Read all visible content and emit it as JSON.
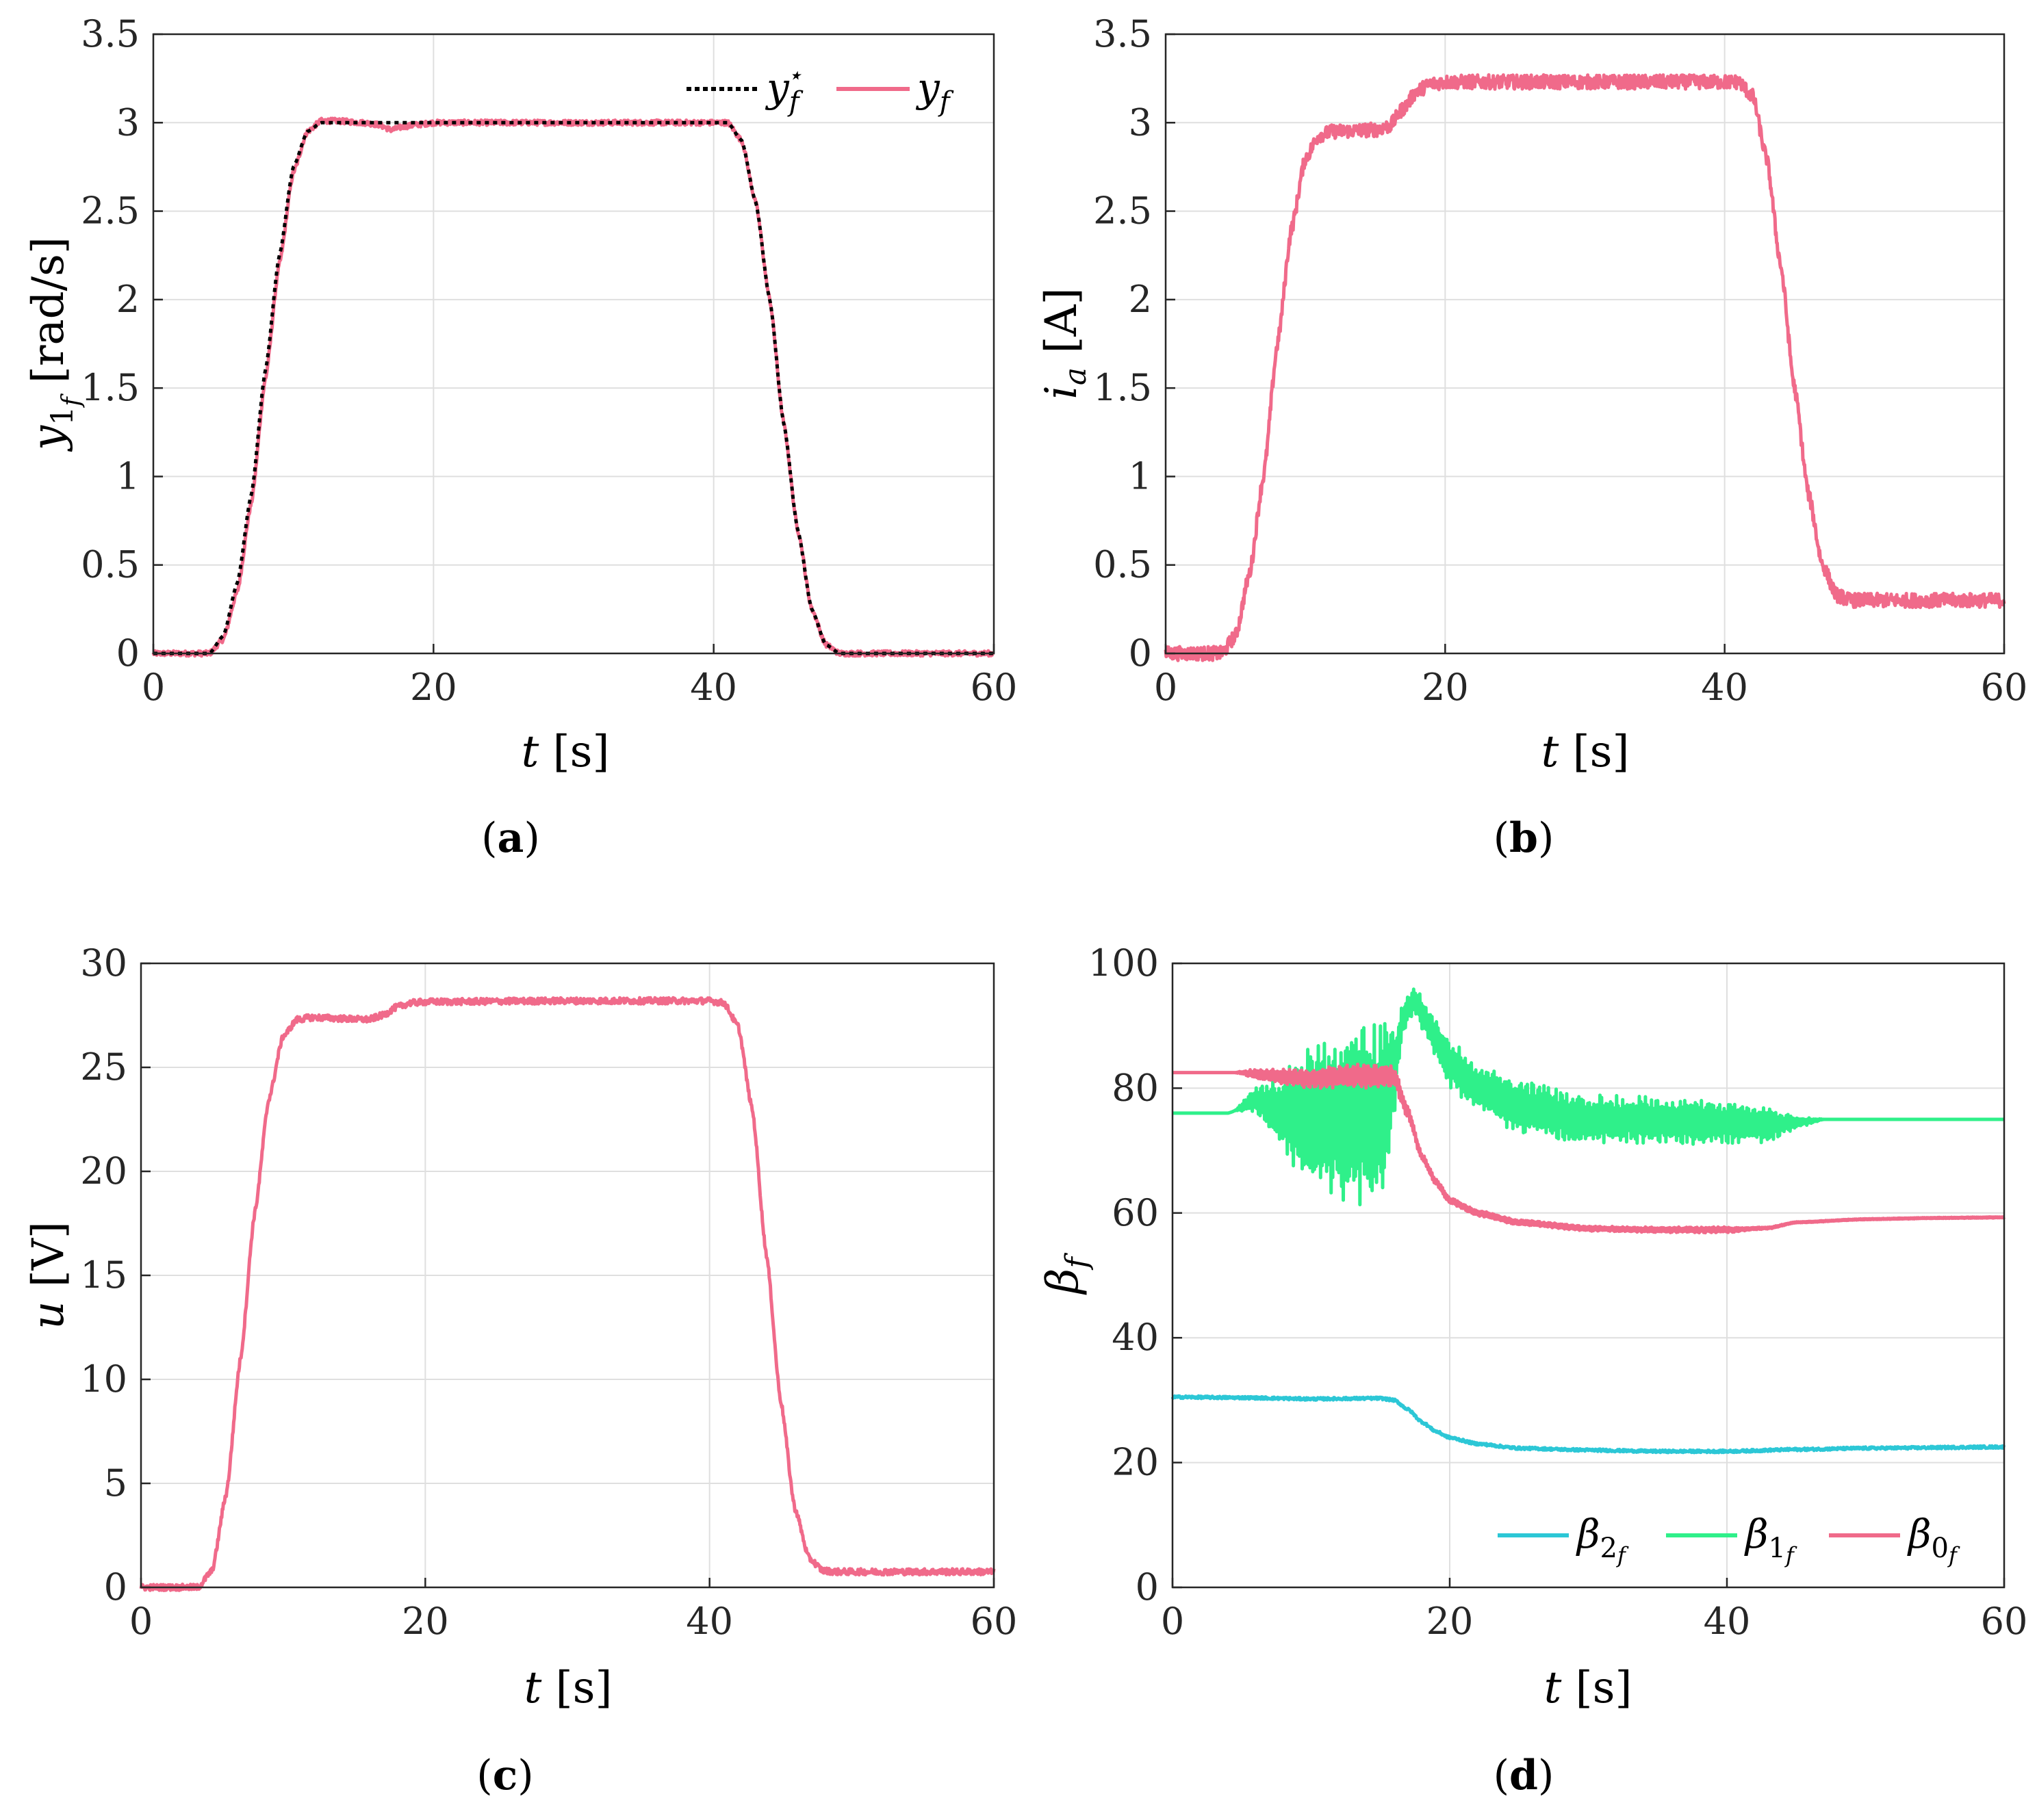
{
  "colors": {
    "ref": "#000000",
    "meas": "#f06a8a",
    "beta2": "#2cc7d6",
    "beta1": "#2ff08a",
    "beta0": "#f06a8a",
    "grid": "#dfdfdf",
    "axis": "#262626"
  },
  "chart_data": [
    {
      "id": "a",
      "type": "line",
      "panel_label": "(a)",
      "xlabel": "t [s]",
      "ylabel": "y1f [rad/s]",
      "xlim": [
        0,
        60
      ],
      "ylim": [
        0,
        3.5
      ],
      "xticks": [
        "0",
        "20",
        "40",
        "60"
      ],
      "yticks": [
        "0",
        "0.5",
        "1",
        "1.5",
        "2",
        "2.5",
        "3",
        "3.5"
      ],
      "legend": {
        "position": "top-right",
        "entries": [
          "y_f*",
          "y_f"
        ]
      },
      "series": [
        {
          "name": "y_f*",
          "style": "dotted",
          "color_key": "ref",
          "x": [
            0,
            4,
            5,
            6,
            7,
            8,
            9,
            10,
            11,
            12,
            13,
            16,
            20,
            30,
            40,
            41,
            42,
            43,
            44,
            45,
            46,
            47,
            48,
            49,
            50,
            60
          ],
          "y": [
            0,
            0,
            0.1,
            0.4,
            0.9,
            1.6,
            2.25,
            2.75,
            2.95,
            3.0,
            3.0,
            3.0,
            3.0,
            3.0,
            3.0,
            3.0,
            2.9,
            2.55,
            2.0,
            1.3,
            0.7,
            0.25,
            0.05,
            0,
            0,
            0
          ]
        },
        {
          "name": "y_f",
          "style": "solid",
          "color_key": "meas",
          "noise": 0.015,
          "x": [
            0,
            4,
            5,
            6,
            7,
            8,
            9,
            10,
            11,
            12,
            13,
            15,
            16,
            17,
            18,
            19,
            20,
            30,
            40,
            41,
            42,
            43,
            44,
            45,
            46,
            47,
            48,
            49,
            50,
            60
          ],
          "y": [
            0,
            0,
            0.08,
            0.35,
            0.85,
            1.55,
            2.2,
            2.72,
            2.95,
            3.01,
            3.01,
            3.0,
            2.99,
            2.96,
            2.98,
            2.99,
            3.0,
            3.0,
            3.0,
            3.0,
            2.9,
            2.55,
            2.0,
            1.3,
            0.7,
            0.25,
            0.05,
            0,
            0,
            0
          ]
        }
      ]
    },
    {
      "id": "b",
      "type": "line",
      "panel_label": "(b)",
      "xlabel": "t [s]",
      "ylabel": "ia [A]",
      "xlim": [
        0,
        60
      ],
      "ylim": [
        0,
        3.5
      ],
      "xticks": [
        "0",
        "20",
        "40",
        "60"
      ],
      "yticks": [
        "0",
        "0.5",
        "1",
        "1.5",
        "2",
        "2.5",
        "3",
        "3.5"
      ],
      "series": [
        {
          "name": "i_a",
          "style": "solid",
          "color_key": "meas",
          "noise": 0.04,
          "x": [
            0,
            4,
            5,
            6,
            7,
            8,
            9,
            10,
            11,
            12,
            15,
            16,
            17,
            18,
            19,
            20,
            30,
            40,
            41,
            42,
            43,
            44,
            45,
            46,
            47,
            48,
            49,
            50,
            60
          ],
          "y": [
            0,
            0,
            0.1,
            0.45,
            1.0,
            1.75,
            2.4,
            2.8,
            2.93,
            2.95,
            2.96,
            2.98,
            3.08,
            3.18,
            3.22,
            3.23,
            3.23,
            3.23,
            3.23,
            3.15,
            2.8,
            2.2,
            1.5,
            0.9,
            0.5,
            0.33,
            0.3,
            0.3,
            0.3
          ]
        }
      ]
    },
    {
      "id": "c",
      "type": "line",
      "panel_label": "(c)",
      "xlabel": "t [s]",
      "ylabel": "u [V]",
      "xlim": [
        0,
        60
      ],
      "ylim": [
        0,
        30
      ],
      "xticks": [
        "0",
        "20",
        "40",
        "60"
      ],
      "yticks": [
        "0",
        "5",
        "10",
        "15",
        "20",
        "25",
        "30"
      ],
      "series": [
        {
          "name": "u",
          "style": "solid",
          "color_key": "meas",
          "noise": 0.15,
          "x": [
            0,
            4,
            5,
            6,
            7,
            8,
            9,
            10,
            11,
            12,
            16,
            17,
            18,
            19,
            20,
            30,
            40,
            41,
            42,
            43,
            44,
            45,
            46,
            47,
            48,
            49,
            60
          ],
          "y": [
            0,
            0,
            0.8,
            4.5,
            11.0,
            18.0,
            23.5,
            26.5,
            27.3,
            27.4,
            27.3,
            27.5,
            27.9,
            28.1,
            28.15,
            28.2,
            28.2,
            28.1,
            27.0,
            23.0,
            16.0,
            9.0,
            3.8,
            1.4,
            0.8,
            0.75,
            0.75
          ]
        }
      ]
    },
    {
      "id": "d",
      "type": "line",
      "panel_label": "(d)",
      "xlabel": "t [s]",
      "ylabel": "βf",
      "xlim": [
        0,
        60
      ],
      "ylim": [
        0,
        100
      ],
      "xticks": [
        "0",
        "20",
        "40",
        "60"
      ],
      "yticks": [
        "0",
        "20",
        "40",
        "60",
        "80",
        "100"
      ],
      "legend": {
        "position": "bottom-right",
        "entries": [
          "β2f",
          "β1f",
          "β0f"
        ]
      },
      "series": [
        {
          "name": "β2f",
          "style": "solid",
          "color_key": "beta2",
          "noise": 0.2,
          "x": [
            0,
            5,
            10,
            15,
            16,
            17,
            18,
            19,
            20,
            22,
            25,
            30,
            35,
            40,
            45,
            50,
            60
          ],
          "y": [
            30.5,
            30.4,
            30.2,
            30.3,
            30.0,
            28.5,
            26.5,
            25.0,
            24.0,
            23.0,
            22.3,
            22.0,
            21.8,
            21.8,
            22.1,
            22.3,
            22.5
          ]
        },
        {
          "name": "β1f",
          "style": "solid",
          "color_key": "beta1",
          "noise": 0,
          "osc": [
            [
              0,
              0
            ],
            [
              4.5,
              0
            ],
            [
              6,
              2
            ],
            [
              8,
              6
            ],
            [
              9,
              10
            ],
            [
              10,
              13
            ],
            [
              12,
              14
            ],
            [
              14,
              15
            ],
            [
              15.5,
              15
            ],
            [
              16.2,
              4
            ],
            [
              17,
              2
            ],
            [
              20,
              4
            ],
            [
              25,
              4.5
            ],
            [
              40,
              3.5
            ],
            [
              43,
              3
            ],
            [
              45,
              1
            ],
            [
              47,
              0
            ],
            [
              60,
              0
            ]
          ],
          "x": [
            0,
            4,
            6,
            8,
            10,
            12,
            14,
            15,
            16,
            16.5,
            17,
            17.5,
            18,
            19,
            20,
            22,
            25,
            30,
            40,
            43,
            45,
            47,
            50,
            60
          ],
          "y": [
            76,
            76,
            78,
            76,
            75,
            75,
            76,
            76,
            82,
            90,
            93,
            94,
            92,
            88,
            84,
            80,
            77,
            75,
            74.5,
            74,
            74.5,
            75,
            75,
            75
          ]
        },
        {
          "name": "β0f",
          "style": "solid",
          "color_key": "beta0",
          "noise": 0,
          "osc": [
            [
              0,
              0
            ],
            [
              4.5,
              0
            ],
            [
              6,
              0.8
            ],
            [
              10,
              1.6
            ],
            [
              14,
              2.2
            ],
            [
              16,
              1.8
            ],
            [
              17,
              1.0
            ],
            [
              18,
              0.6
            ],
            [
              20,
              0.5
            ],
            [
              30,
              0.4
            ],
            [
              40,
              0.5
            ],
            [
              42,
              0.2
            ],
            [
              45,
              0.1
            ],
            [
              60,
              0.1
            ]
          ],
          "x": [
            0,
            5,
            7,
            10,
            14,
            16,
            17,
            18,
            19,
            20,
            22,
            25,
            30,
            35,
            40,
            43,
            45,
            50,
            55,
            60
          ],
          "y": [
            82.5,
            82.5,
            82,
            81.5,
            82.0,
            81.8,
            76,
            69,
            65,
            62,
            60,
            58.5,
            57.5,
            57.3,
            57.3,
            57.6,
            58.5,
            59.0,
            59.2,
            59.3
          ]
        }
      ]
    }
  ]
}
